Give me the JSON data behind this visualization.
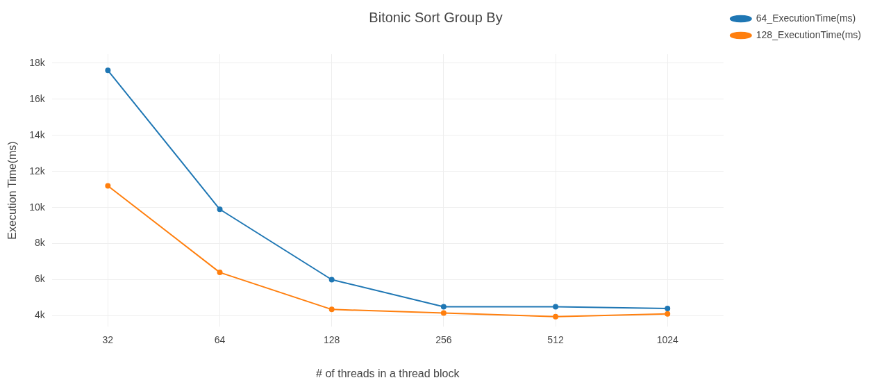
{
  "chart_data": {
    "type": "line",
    "title": "Bitonic Sort Group By",
    "xlabel": "# of threads in a thread block",
    "ylabel": "Execution Time(ms)",
    "categories": [
      "32",
      "64",
      "128",
      "256",
      "512",
      "1024"
    ],
    "series": [
      {
        "name": "64_ExecutionTime(ms)",
        "color": "#1f77b4",
        "values": [
          17600,
          9900,
          6000,
          4500,
          4500,
          4400
        ]
      },
      {
        "name": "128_ExecutionTime(ms)",
        "color": "#ff7f0e",
        "values": [
          11200,
          6400,
          4350,
          4150,
          3950,
          4100
        ]
      }
    ],
    "ylim": [
      3400,
      18500
    ],
    "yticks": [
      {
        "value": 4000,
        "label": "4k"
      },
      {
        "value": 6000,
        "label": "6k"
      },
      {
        "value": 8000,
        "label": "8k"
      },
      {
        "value": 10000,
        "label": "10k"
      },
      {
        "value": 12000,
        "label": "12k"
      },
      {
        "value": 14000,
        "label": "14k"
      },
      {
        "value": 16000,
        "label": "16k"
      },
      {
        "value": 18000,
        "label": "18k"
      }
    ],
    "grid": true,
    "legend": "top right",
    "marker": "circle",
    "line_style": "solid"
  }
}
